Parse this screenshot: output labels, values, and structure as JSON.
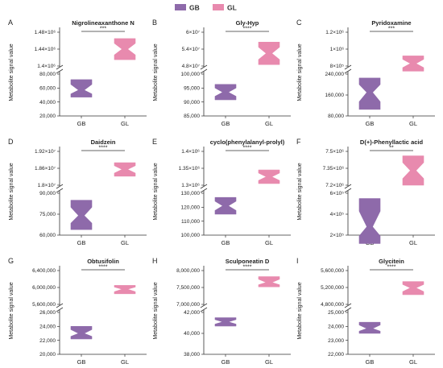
{
  "legend": {
    "items": [
      {
        "label": "GB",
        "color": "#8e6aaa"
      },
      {
        "label": "GL",
        "color": "#e88aae"
      }
    ]
  },
  "ylabel": "Metabolite signal value",
  "chart_data": [
    {
      "letter": "A",
      "type": "violin",
      "title": "Nigrolineaxanthone N",
      "categories": [
        "GB",
        "GL"
      ],
      "ylabel": "Metabolite signal value",
      "sig": "***",
      "lower_axis": {
        "ticks": [
          20000,
          40000,
          60000,
          80000
        ],
        "tick_labels": [
          "20,000",
          "40,000",
          "60,000",
          "80,000"
        ]
      },
      "upper_axis": {
        "ticks": [
          1400000,
          1440000,
          1480000
        ],
        "tick_labels": [
          "1.4×10⁶",
          "1.44×10⁶",
          "1.48×10⁶"
        ]
      },
      "series": [
        {
          "name": "GB",
          "min": 47000,
          "max": 72000,
          "median": 57000
        },
        {
          "name": "GL",
          "min": 1415000,
          "max": 1465000,
          "median": 1440000
        }
      ]
    },
    {
      "letter": "B",
      "type": "violin",
      "title": "Gly-Hyp",
      "categories": [
        "GB",
        "GL"
      ],
      "ylabel": "Metabolite signal value",
      "sig": "****",
      "lower_axis": {
        "ticks": [
          85000,
          90000,
          95000,
          100000
        ],
        "tick_labels": [
          "85,000",
          "90,000",
          "95,000",
          "100,000"
        ]
      },
      "upper_axis": {
        "ticks": [
          48000000,
          54000000,
          60000000
        ],
        "tick_labels": [
          "4.8×10⁷",
          "5.4×10⁷",
          "6×10⁷"
        ]
      },
      "series": [
        {
          "name": "GB",
          "min": 90800,
          "max": 96300,
          "median": 93500
        },
        {
          "name": "GL",
          "min": 48500000,
          "max": 56500000,
          "median": 52500000
        }
      ]
    },
    {
      "letter": "C",
      "type": "violin",
      "title": "Pyridoxamine",
      "categories": [
        "GB",
        "GL"
      ],
      "ylabel": "Metabolite signal value",
      "sig": "***",
      "lower_axis": {
        "ticks": [
          80000,
          160000,
          240000
        ],
        "tick_labels": [
          "80,000",
          "160,000",
          "240,000"
        ]
      },
      "upper_axis": {
        "ticks": [
          800000,
          1000000,
          1200000
        ],
        "tick_labels": [
          "8×10⁵",
          "1×10⁶",
          "1.2×10⁶"
        ]
      },
      "series": [
        {
          "name": "GB",
          "min": 105000,
          "max": 225000,
          "median": 170000
        },
        {
          "name": "GL",
          "min": 740000,
          "max": 920000,
          "median": 830000
        }
      ]
    },
    {
      "letter": "D",
      "type": "violin",
      "title": "Daidzein",
      "categories": [
        "GB",
        "GL"
      ],
      "ylabel": "Metabolite signal value",
      "sig": "****",
      "lower_axis": {
        "ticks": [
          60000,
          75000,
          90000
        ],
        "tick_labels": [
          "60,000",
          "75,000",
          "90,000"
        ]
      },
      "upper_axis": {
        "ticks": [
          18000000,
          18600000,
          19200000
        ],
        "tick_labels": [
          "1.8×10⁷",
          "1.86×10⁷",
          "1.92×10⁷"
        ]
      },
      "series": [
        {
          "name": "GB",
          "min": 64000,
          "max": 85000,
          "median": 74000
        },
        {
          "name": "GL",
          "min": 18320000,
          "max": 18800000,
          "median": 18560000
        }
      ]
    },
    {
      "letter": "E",
      "type": "violin",
      "title": "cyclo(phenylalanyl-prolyl)",
      "categories": [
        "GB",
        "GL"
      ],
      "ylabel": "Metabolite signal value",
      "sig": "****",
      "lower_axis": {
        "ticks": [
          100000,
          110000,
          120000,
          130000
        ],
        "tick_labels": [
          "100,000",
          "110,000",
          "120,000",
          "130,000"
        ]
      },
      "upper_axis": {
        "ticks": [
          1300000,
          1350000,
          1400000
        ],
        "tick_labels": [
          "1.3×10⁶",
          "1.35×10⁶",
          "1.4×10⁶"
        ]
      },
      "series": [
        {
          "name": "GB",
          "min": 115000,
          "max": 127000,
          "median": 121000
        },
        {
          "name": "GL",
          "min": 1305000,
          "max": 1345000,
          "median": 1325000
        }
      ]
    },
    {
      "letter": "F",
      "type": "violin",
      "title": "D(+)-Phenyllactic acid",
      "categories": [
        "GB",
        "GL"
      ],
      "ylabel": "Metabolite signal value",
      "sig": "**",
      "lower_axis": {
        "ticks": [
          200000,
          400000,
          600000
        ],
        "tick_labels": [
          "2×10⁵",
          "4×10⁵",
          "6×10⁵"
        ]
      },
      "upper_axis": {
        "ticks": [
          7200000,
          7350000,
          7500000
        ],
        "tick_labels": [
          "7.2×10⁶",
          "7.35×10⁶",
          "7.5×10⁶"
        ]
      },
      "series": [
        {
          "name": "GB",
          "min": 120000,
          "max": 550000,
          "median": 280000
        },
        {
          "name": "GL",
          "min": 7200000,
          "max": 7460000,
          "median": 7330000
        }
      ]
    },
    {
      "letter": "G",
      "type": "violin",
      "title": "Obtusifolin",
      "categories": [
        "GB",
        "GL"
      ],
      "ylabel": "Metabolite signal value",
      "sig": "****",
      "lower_axis": {
        "ticks": [
          20000,
          22000,
          24000,
          26000
        ],
        "tick_labels": [
          "20,000",
          "22,000",
          "24,000",
          "26,000"
        ]
      },
      "upper_axis": {
        "ticks": [
          5600000,
          6000000,
          6400000
        ],
        "tick_labels": [
          "5,600,000",
          "6,000,000",
          "6,400,000"
        ]
      },
      "series": [
        {
          "name": "GB",
          "min": 22200,
          "max": 24000,
          "median": 23000
        },
        {
          "name": "GL",
          "min": 5850000,
          "max": 6050000,
          "median": 5960000
        }
      ]
    },
    {
      "letter": "H",
      "type": "violin",
      "title": "Sculponeatin D",
      "categories": [
        "GB",
        "GL"
      ],
      "ylabel": "Metabolite signal value",
      "sig": "****",
      "lower_axis": {
        "ticks": [
          38000,
          40000,
          42000
        ],
        "tick_labels": [
          "38,000",
          "40,000",
          "42,000"
        ]
      },
      "upper_axis": {
        "ticks": [
          7000000,
          7500000,
          8000000
        ],
        "tick_labels": [
          "7,000,000",
          "7,500,000",
          "8,000,000"
        ]
      },
      "series": [
        {
          "name": "GB",
          "min": 40700,
          "max": 41500,
          "median": 41100
        },
        {
          "name": "GL",
          "min": 7520000,
          "max": 7820000,
          "median": 7650000
        }
      ]
    },
    {
      "letter": "I",
      "type": "violin",
      "title": "Glycitein",
      "categories": [
        "GB",
        "GL"
      ],
      "ylabel": "Metabolite signal value",
      "sig": "****",
      "lower_axis": {
        "ticks": [
          22000,
          23000,
          24000,
          25000
        ],
        "tick_labels": [
          "22,000",
          "23,000",
          "24,000",
          "25,000"
        ]
      },
      "upper_axis": {
        "ticks": [
          4800000,
          5200000,
          5600000
        ],
        "tick_labels": [
          "4,800,000",
          "5,200,000",
          "5,600,000"
        ]
      },
      "series": [
        {
          "name": "GB",
          "min": 23500,
          "max": 24300,
          "median": 23850
        },
        {
          "name": "GL",
          "min": 5030000,
          "max": 5340000,
          "median": 5190000
        }
      ]
    }
  ]
}
